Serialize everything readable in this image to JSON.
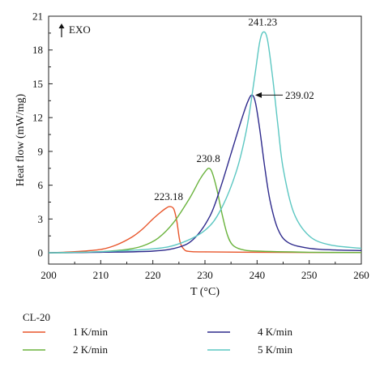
{
  "chart_data": {
    "type": "line",
    "xlabel": "T (°C)",
    "ylabel": "Heat flow (mW/mg)",
    "xlim": [
      200,
      260
    ],
    "ylim": [
      -1,
      21
    ],
    "xticks": [
      200,
      210,
      220,
      230,
      240,
      250,
      260
    ],
    "yticks": [
      0,
      3,
      6,
      9,
      12,
      15,
      18,
      21
    ],
    "exo_label": "EXO",
    "grid": false,
    "legend_title": "CL-20",
    "legend_position": "below",
    "series": [
      {
        "name": "1 K/min",
        "color": "#e8552a",
        "x": [
          200,
          205,
          210,
          213,
          216,
          218,
          220,
          221.5,
          222.5,
          223.18,
          224,
          224.6,
          225.2,
          226,
          227,
          230,
          240,
          250,
          260
        ],
        "y": [
          0,
          0.1,
          0.3,
          0.7,
          1.4,
          2.1,
          3.0,
          3.6,
          3.95,
          4.1,
          3.9,
          2.8,
          1.0,
          0.3,
          0.12,
          0.08,
          0.05,
          0.03,
          0.02
        ]
      },
      {
        "name": "2 K/min",
        "color": "#6ab33d",
        "x": [
          200,
          205,
          210,
          215,
          218,
          221,
          224,
          227,
          229,
          230.2,
          230.8,
          231.4,
          232.3,
          233.3,
          234.3,
          235.3,
          237,
          240,
          250,
          260
        ],
        "y": [
          0,
          0.02,
          0.1,
          0.3,
          0.6,
          1.3,
          2.7,
          4.8,
          6.5,
          7.3,
          7.5,
          7.1,
          5.6,
          3.4,
          1.6,
          0.7,
          0.3,
          0.15,
          0.05,
          0.02
        ]
      },
      {
        "name": "4 K/min",
        "color": "#2e2a8c",
        "x": [
          200,
          210,
          220,
          225,
          228,
          231,
          233,
          235,
          237,
          238.2,
          239.02,
          239.7,
          240.5,
          241.5,
          242.5,
          244,
          246,
          250,
          255,
          260
        ],
        "y": [
          0,
          0.05,
          0.15,
          0.5,
          1.3,
          3.3,
          5.8,
          8.8,
          11.8,
          13.4,
          14.0,
          13.3,
          11.0,
          7.5,
          4.6,
          2.1,
          0.9,
          0.4,
          0.25,
          0.2
        ]
      },
      {
        "name": "5 K/min",
        "color": "#5cc7c2",
        "x": [
          200,
          210,
          220,
          225,
          230,
          233,
          236,
          238,
          239.5,
          240.5,
          241.23,
          242,
          243,
          244,
          245,
          247,
          250,
          254,
          260
        ],
        "y": [
          0,
          0.1,
          0.35,
          0.8,
          2.0,
          3.8,
          7.2,
          11.0,
          15.5,
          18.7,
          19.6,
          18.9,
          15.5,
          11.3,
          7.5,
          3.6,
          1.5,
          0.7,
          0.4
        ]
      }
    ],
    "annotations": [
      {
        "text": "223.18",
        "x": 223.18,
        "y": 4.1
      },
      {
        "text": "230.8",
        "x": 230.8,
        "y": 7.5
      },
      {
        "text": "239.02",
        "x": 239.02,
        "y": 14.0,
        "arrow": true
      },
      {
        "text": "241.23",
        "x": 241.23,
        "y": 19.6
      }
    ]
  }
}
